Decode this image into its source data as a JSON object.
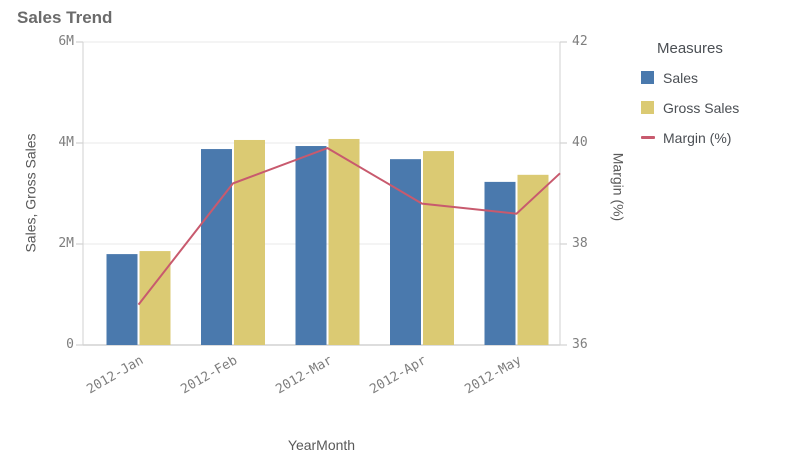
{
  "window": {
    "title": "Sales Trend"
  },
  "chart_data": {
    "type": "combo",
    "title": "Sales Trend",
    "categories": [
      "2012-Jan",
      "2012-Feb",
      "2012-Mar",
      "2012-Apr",
      "2012-May"
    ],
    "series": [
      {
        "name": "Sales",
        "type": "bar",
        "axis": "left",
        "color": "#4a79ad",
        "values": [
          1800000,
          3880000,
          3940000,
          3680000,
          3230000
        ]
      },
      {
        "name": "Gross Sales",
        "type": "bar",
        "axis": "left",
        "color": "#dbca73",
        "values": [
          1860000,
          4060000,
          4080000,
          3840000,
          3370000
        ]
      },
      {
        "name": "Margin (%)",
        "type": "line",
        "axis": "right",
        "color": "#c85a6e",
        "values": [
          36.8,
          39.2,
          39.9,
          38.8,
          38.6
        ],
        "line_continues_past_right_edge": true,
        "value_at_right_edge": 39.4
      }
    ],
    "x_axis": {
      "label": "YearMonth"
    },
    "left_axis": {
      "label": "Sales, Gross Sales",
      "tick_labels": [
        "0",
        "2M",
        "4M",
        "6M"
      ],
      "tick_values": [
        0,
        2000000,
        4000000,
        6000000
      ],
      "range": [
        0,
        6000000
      ]
    },
    "right_axis": {
      "label": "Margin (%)",
      "tick_labels": [
        "36",
        "38",
        "40",
        "42"
      ],
      "tick_values": [
        36,
        38,
        40,
        42
      ],
      "range": [
        36,
        42
      ]
    },
    "grid": true,
    "legend_position": "right"
  },
  "legend": {
    "title": "Measures",
    "items": [
      {
        "label": "Sales",
        "swatch": "square",
        "color": "#4a79ad"
      },
      {
        "label": "Gross Sales",
        "swatch": "square",
        "color": "#dbca73"
      },
      {
        "label": "Margin (%)",
        "swatch": "line",
        "color": "#c85a6e"
      }
    ]
  },
  "colors": {
    "grid_line": "#e8e8e8",
    "axis_line": "#d2d2d2",
    "tick_mark": "#c9c9c9"
  }
}
